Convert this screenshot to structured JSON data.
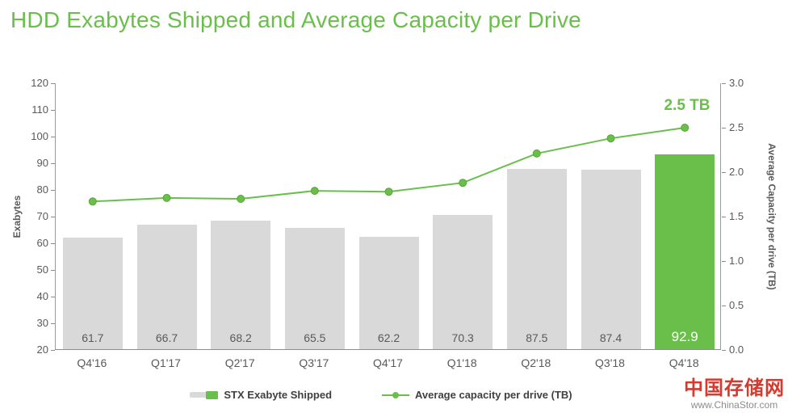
{
  "title": "HDD Exabytes Shipped and Average Capacity per Drive",
  "legend": [
    {
      "label": "STX Exabyte Shipped"
    },
    {
      "label": "Average capacity per drive (TB)"
    }
  ],
  "watermark": {
    "name": "中国存储网",
    "url": "www.ChinaStor.com"
  },
  "colors": {
    "accent_green": "#6abf4b",
    "bar_gray": "#d9d9d9",
    "axis_text": "#595959",
    "legend_text": "#404040",
    "watermark_red": "#d63a2f",
    "highlight_label": "#ffffff"
  },
  "chart_data": {
    "type": "bar",
    "title": "HDD Exabytes Shipped and Average Capacity per Drive",
    "categories": [
      "Q4'16",
      "Q1'17",
      "Q2'17",
      "Q3'17",
      "Q4'17",
      "Q1'18",
      "Q2'18",
      "Q3'18",
      "Q4'18"
    ],
    "series": [
      {
        "name": "STX Exabyte Shipped",
        "type": "bar",
        "axis": "left",
        "values": [
          61.7,
          66.7,
          68.2,
          65.5,
          62.2,
          70.3,
          87.5,
          87.4,
          92.9
        ]
      },
      {
        "name": "Average capacity per drive (TB)",
        "type": "line",
        "axis": "right",
        "values": [
          1.67,
          1.71,
          1.7,
          1.79,
          1.78,
          1.88,
          2.21,
          2.38,
          2.5
        ]
      }
    ],
    "left_axis": {
      "label": "Exabytes",
      "min": 20,
      "max": 120,
      "step": 10
    },
    "right_axis": {
      "label": "Average Capacity per drive (TB)",
      "min": 0,
      "max": 3,
      "step": 0.5
    },
    "highlight_index": 8,
    "annotation": {
      "text": "2.5 TB",
      "index": 8
    },
    "grid": false,
    "legend_position": "bottom"
  }
}
